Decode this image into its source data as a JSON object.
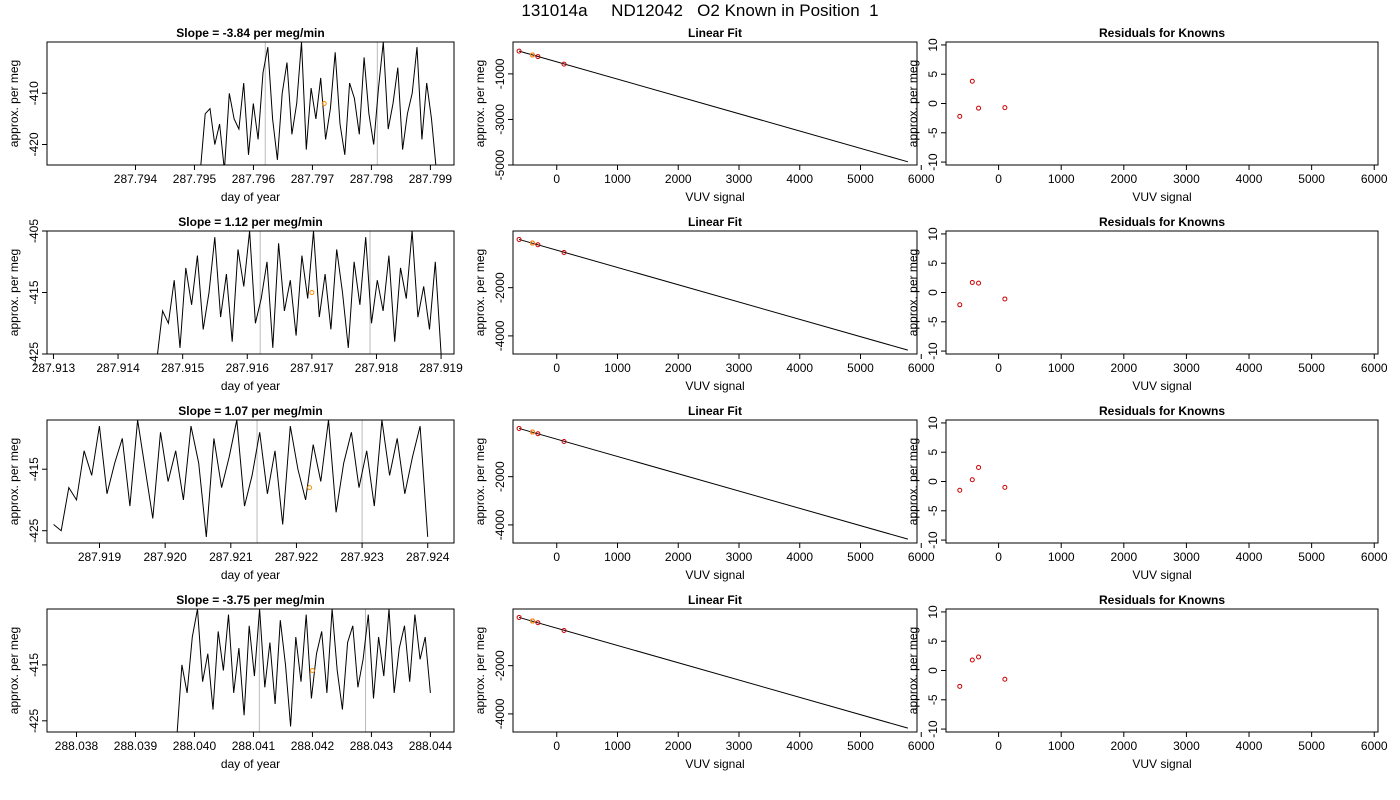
{
  "figure_title": "131014a     ND12042   O2 Known in Position  1",
  "colors": {
    "line": "#000000",
    "residual_points": "#cc0000",
    "highlight": "#ff8c00",
    "vertical_marker": "#bbbbbb"
  },
  "chart_data": [
    {
      "panel": "timeseries-1",
      "type": "line",
      "title": "Slope =  -3.84  per meg/min",
      "xlabel": "day of year",
      "ylabel": "approx. per meg",
      "xlim": [
        287.7925,
        287.7994
      ],
      "ylim": [
        -424,
        -400
      ],
      "xticks": [
        287.794,
        287.795,
        287.796,
        287.797,
        287.798,
        287.799
      ],
      "xtick_labels": [
        "287.794",
        "287.795",
        "287.796",
        "287.797",
        "287.798",
        "287.799"
      ],
      "yticks": [
        -410,
        -420
      ],
      "ytick_labels": [
        "-410",
        "-420"
      ],
      "series_x_range": [
        287.7951,
        287.7991
      ],
      "series_y": [
        -425,
        -414,
        -413,
        -420,
        -416,
        -425,
        -410,
        -415,
        -417,
        -408,
        -422,
        -412,
        -419,
        -406,
        -401,
        -415,
        -423,
        -410,
        -404,
        -418,
        -412,
        -400,
        -421,
        -409,
        -415,
        -407,
        -419,
        -413,
        -402,
        -416,
        -422,
        -408,
        -411,
        -418,
        -403,
        -414,
        -420,
        -409,
        -400,
        -417,
        -412,
        -405,
        -421,
        -414,
        -410,
        -401,
        -419,
        -408,
        -415,
        -425
      ],
      "vertical_markers": [
        287.7962,
        287.7981
      ],
      "highlight_points": [
        {
          "x": 287.7972,
          "y": -412
        }
      ]
    },
    {
      "panel": "fit-1",
      "type": "line",
      "title": "Linear Fit",
      "xlabel": "VUV signal",
      "ylabel": "approx. per meg",
      "xlim": [
        -720,
        5930
      ],
      "ylim": [
        -5000,
        400
      ],
      "xticks": [
        0,
        1000,
        2000,
        3000,
        4000,
        5000,
        6000
      ],
      "xtick_labels": [
        "0",
        "1000",
        "2000",
        "3000",
        "4000",
        "5000",
        "6000"
      ],
      "yticks": [
        -1000,
        -3000,
        -5000
      ],
      "ytick_labels": [
        "-1000",
        "-3000",
        "-5000"
      ],
      "line_points": [
        [
          -620,
          0
        ],
        [
          5780,
          -4860
        ]
      ],
      "points": [
        {
          "x": -620,
          "y": 0
        },
        {
          "x": -400,
          "y": -170
        },
        {
          "x": -310,
          "y": -240
        },
        {
          "x": 120,
          "y": -570
        }
      ],
      "highlight_points": [
        {
          "x": -400,
          "y": -170
        }
      ]
    },
    {
      "panel": "residuals-1",
      "type": "scatter",
      "title": "Residuals for Knowns",
      "xlabel": "VUV signal",
      "ylabel": "approx. per meg",
      "xlim": [
        -840,
        6060
      ],
      "ylim": [
        -10.5,
        10.5
      ],
      "xticks": [
        0,
        1000,
        2000,
        3000,
        4000,
        5000,
        6000
      ],
      "xtick_labels": [
        "0",
        "1000",
        "2000",
        "3000",
        "4000",
        "5000",
        "6000"
      ],
      "yticks": [
        10,
        5,
        0,
        -5,
        -10
      ],
      "ytick_labels": [
        "10",
        "5",
        "0",
        "-5",
        "-10"
      ],
      "points": [
        {
          "x": -620,
          "y": -2.2
        },
        {
          "x": -420,
          "y": 3.8
        },
        {
          "x": -320,
          "y": -0.8
        },
        {
          "x": 100,
          "y": -0.7
        }
      ]
    },
    {
      "panel": "timeseries-2",
      "type": "line",
      "title": "Slope =  1.12  per meg/min",
      "xlabel": "day of year",
      "ylabel": "approx. per meg",
      "xlim": [
        287.9129,
        287.9192
      ],
      "ylim": [
        -425,
        -405
      ],
      "xticks": [
        287.913,
        287.914,
        287.915,
        287.916,
        287.917,
        287.918,
        287.919
      ],
      "xtick_labels": [
        "287.913",
        "287.914",
        "287.915",
        "287.916",
        "287.917",
        "287.918",
        "287.919"
      ],
      "yticks": [
        -405,
        -415,
        -425
      ],
      "ytick_labels": [
        "-405",
        "-415",
        "-425"
      ],
      "series_x_range": [
        287.9146,
        287.919
      ],
      "series_y": [
        -426,
        -418,
        -420,
        -413,
        -424,
        -411,
        -417,
        -409,
        -421,
        -415,
        -406,
        -419,
        -412,
        -423,
        -408,
        -414,
        -405,
        -420,
        -416,
        -410,
        -424,
        -407,
        -418,
        -413,
        -422,
        -409,
        -416,
        -405,
        -419,
        -412,
        -421,
        -408,
        -415,
        -424,
        -410,
        -417,
        -406,
        -420,
        -413,
        -418,
        -409,
        -423,
        -411,
        -416,
        -405,
        -419,
        -414,
        -421,
        -410,
        -425
      ],
      "vertical_markers": [
        287.9162,
        287.9179
      ],
      "highlight_points": [
        {
          "x": 287.917,
          "y": -415
        }
      ]
    },
    {
      "panel": "fit-2",
      "type": "line",
      "title": "Linear Fit",
      "xlabel": "VUV signal",
      "ylabel": "approx. per meg",
      "xlim": [
        -720,
        5930
      ],
      "ylim": [
        -4750,
        350
      ],
      "xticks": [
        0,
        1000,
        2000,
        3000,
        4000,
        5000,
        6000
      ],
      "xtick_labels": [
        "0",
        "1000",
        "2000",
        "3000",
        "4000",
        "5000",
        "6000"
      ],
      "yticks": [
        -2000,
        -4000
      ],
      "ytick_labels": [
        "-2000",
        "-4000"
      ],
      "line_points": [
        [
          -620,
          0
        ],
        [
          5780,
          -4590
        ]
      ],
      "points": [
        {
          "x": -620,
          "y": 0
        },
        {
          "x": -400,
          "y": -150
        },
        {
          "x": -310,
          "y": -220
        },
        {
          "x": 120,
          "y": -540
        }
      ],
      "highlight_points": [
        {
          "x": -400,
          "y": -150
        }
      ]
    },
    {
      "panel": "residuals-2",
      "type": "scatter",
      "title": "Residuals for Knowns",
      "xlabel": "VUV signal",
      "ylabel": "approx. per meg",
      "xlim": [
        -840,
        6060
      ],
      "ylim": [
        -10.5,
        10.5
      ],
      "xticks": [
        0,
        1000,
        2000,
        3000,
        4000,
        5000,
        6000
      ],
      "xtick_labels": [
        "0",
        "1000",
        "2000",
        "3000",
        "4000",
        "5000",
        "6000"
      ],
      "yticks": [
        10,
        5,
        0,
        -5,
        -10
      ],
      "ytick_labels": [
        "10",
        "5",
        "0",
        "-5",
        "-10"
      ],
      "points": [
        {
          "x": -620,
          "y": -2.1
        },
        {
          "x": -420,
          "y": 1.7
        },
        {
          "x": -320,
          "y": 1.6
        },
        {
          "x": 100,
          "y": -1.1
        }
      ]
    },
    {
      "panel": "timeseries-3",
      "type": "line",
      "title": "Slope =  1.07  per meg/min",
      "xlabel": "day of year",
      "ylabel": "approx. per meg",
      "xlim": [
        287.9182,
        287.9244
      ],
      "ylim": [
        -427,
        -407
      ],
      "xticks": [
        287.919,
        287.92,
        287.921,
        287.922,
        287.923,
        287.924
      ],
      "xtick_labels": [
        "287.919",
        "287.920",
        "287.921",
        "287.922",
        "287.923",
        "287.924"
      ],
      "yticks": [
        -415,
        -425
      ],
      "ytick_labels": [
        "-415",
        "-425"
      ],
      "series_x_range": [
        287.9183,
        287.924
      ],
      "series_y": [
        -424,
        -425,
        -418,
        -420,
        -412,
        -416,
        -408,
        -419,
        -414,
        -410,
        -421,
        -407,
        -415,
        -423,
        -409,
        -417,
        -412,
        -420,
        -408,
        -414,
        -426,
        -410,
        -418,
        -413,
        -407,
        -421,
        -416,
        -409,
        -419,
        -412,
        -424,
        -408,
        -415,
        -420,
        -411,
        -417,
        -407,
        -422,
        -414,
        -409,
        -418,
        -412,
        -421,
        -407,
        -416,
        -410,
        -419,
        -413,
        -408,
        -426
      ],
      "vertical_markers": [
        287.9214,
        287.923
      ],
      "highlight_points": [
        {
          "x": 287.9222,
          "y": -418
        }
      ]
    },
    {
      "panel": "fit-3",
      "type": "line",
      "title": "Linear Fit",
      "xlabel": "VUV signal",
      "ylabel": "approx. per meg",
      "xlim": [
        -720,
        5930
      ],
      "ylim": [
        -4750,
        350
      ],
      "xticks": [
        0,
        1000,
        2000,
        3000,
        4000,
        5000,
        6000
      ],
      "xtick_labels": [
        "0",
        "1000",
        "2000",
        "3000",
        "4000",
        "5000",
        "6000"
      ],
      "yticks": [
        -2000,
        -4000
      ],
      "ytick_labels": [
        "-2000",
        "-4000"
      ],
      "line_points": [
        [
          -620,
          0
        ],
        [
          5780,
          -4590
        ]
      ],
      "points": [
        {
          "x": -620,
          "y": 0
        },
        {
          "x": -400,
          "y": -150
        },
        {
          "x": -310,
          "y": -220
        },
        {
          "x": 120,
          "y": -540
        }
      ],
      "highlight_points": [
        {
          "x": -400,
          "y": -150
        }
      ]
    },
    {
      "panel": "residuals-3",
      "type": "scatter",
      "title": "Residuals for Knowns",
      "xlabel": "VUV signal",
      "ylabel": "approx. per meg",
      "xlim": [
        -840,
        6060
      ],
      "ylim": [
        -10.5,
        10.5
      ],
      "xticks": [
        0,
        1000,
        2000,
        3000,
        4000,
        5000,
        6000
      ],
      "xtick_labels": [
        "0",
        "1000",
        "2000",
        "3000",
        "4000",
        "5000",
        "6000"
      ],
      "yticks": [
        10,
        5,
        0,
        -5,
        -10
      ],
      "ytick_labels": [
        "10",
        "5",
        "0",
        "-5",
        "-10"
      ],
      "points": [
        {
          "x": -620,
          "y": -1.5
        },
        {
          "x": -420,
          "y": 0.3
        },
        {
          "x": -320,
          "y": 2.4
        },
        {
          "x": 100,
          "y": -1.0
        }
      ]
    },
    {
      "panel": "timeseries-4",
      "type": "line",
      "title": "Slope =  -3.75  per meg/min",
      "xlabel": "day of year",
      "ylabel": "approx. per meg",
      "xlim": [
        288.0375,
        288.0444
      ],
      "ylim": [
        -427,
        -405
      ],
      "xticks": [
        288.038,
        288.039,
        288.04,
        288.041,
        288.042,
        288.043,
        288.044
      ],
      "xtick_labels": [
        "288.038",
        "288.039",
        "288.040",
        "288.041",
        "288.042",
        "288.043",
        "288.044"
      ],
      "yticks": [
        -415,
        -425
      ],
      "ytick_labels": [
        "-415",
        "-425"
      ],
      "series_x_range": [
        288.0397,
        288.044
      ],
      "series_y": [
        -428,
        -415,
        -420,
        -410,
        -405,
        -418,
        -413,
        -423,
        -409,
        -416,
        -406,
        -420,
        -412,
        -424,
        -408,
        -417,
        -405,
        -419,
        -411,
        -422,
        -407,
        -415,
        -426,
        -410,
        -418,
        -406,
        -421,
        -413,
        -409,
        -420,
        -405,
        -416,
        -423,
        -411,
        -408,
        -419,
        -414,
        -406,
        -421,
        -410,
        -417,
        -405,
        -420,
        -412,
        -408,
        -418,
        -406,
        -414,
        -410,
        -420
      ],
      "vertical_markers": [
        288.0411,
        288.0429
      ],
      "highlight_points": [
        {
          "x": 288.042,
          "y": -416
        }
      ]
    },
    {
      "panel": "fit-4",
      "type": "line",
      "title": "Linear Fit",
      "xlabel": "VUV signal",
      "ylabel": "approx. per meg",
      "xlim": [
        -720,
        5930
      ],
      "ylim": [
        -4750,
        350
      ],
      "xticks": [
        0,
        1000,
        2000,
        3000,
        4000,
        5000,
        6000
      ],
      "xtick_labels": [
        "0",
        "1000",
        "2000",
        "3000",
        "4000",
        "5000",
        "6000"
      ],
      "yticks": [
        -2000,
        -4000
      ],
      "ytick_labels": [
        "-2000",
        "-4000"
      ],
      "line_points": [
        [
          -620,
          0
        ],
        [
          5780,
          -4590
        ]
      ],
      "points": [
        {
          "x": -620,
          "y": 0
        },
        {
          "x": -400,
          "y": -150
        },
        {
          "x": -310,
          "y": -220
        },
        {
          "x": 120,
          "y": -540
        }
      ],
      "highlight_points": [
        {
          "x": -400,
          "y": -150
        }
      ]
    },
    {
      "panel": "residuals-4",
      "type": "scatter",
      "title": "Residuals for Knowns",
      "xlabel": "VUV signal",
      "ylabel": "approx. per meg",
      "xlim": [
        -840,
        6060
      ],
      "ylim": [
        -10.5,
        10.5
      ],
      "xticks": [
        0,
        1000,
        2000,
        3000,
        4000,
        5000,
        6000
      ],
      "xtick_labels": [
        "0",
        "1000",
        "2000",
        "3000",
        "4000",
        "5000",
        "6000"
      ],
      "yticks": [
        10,
        5,
        0,
        -5,
        -10
      ],
      "ytick_labels": [
        "10",
        "5",
        "0",
        "-5",
        "-10"
      ],
      "points": [
        {
          "x": -620,
          "y": -2.7
        },
        {
          "x": -420,
          "y": 1.8
        },
        {
          "x": -320,
          "y": 2.3
        },
        {
          "x": 100,
          "y": -1.5
        }
      ]
    }
  ]
}
